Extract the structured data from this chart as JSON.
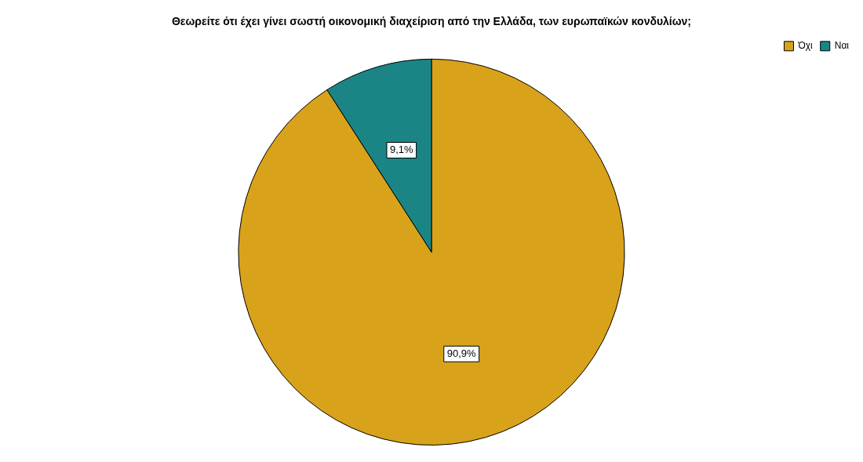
{
  "chart_data": {
    "type": "pie",
    "title": "Θεωρείτε ότι έχει γίνει σωστή οικονομική διαχείριση από την Ελλάδα, των ευρωπαϊκών κονδυλίων;",
    "categories": [
      "Όχι",
      "Ναι"
    ],
    "values": [
      90.9,
      9.1
    ],
    "colors": [
      "#d9a21b",
      "#1b8585"
    ],
    "value_labels": [
      "90,9%",
      "9,1%"
    ],
    "legend": "top right"
  }
}
